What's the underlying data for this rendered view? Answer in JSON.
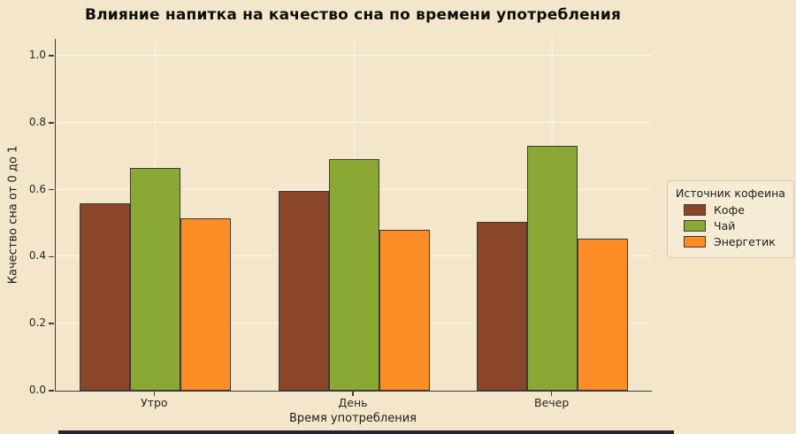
{
  "colors": {
    "background": "#f3e6cb",
    "grid": "rgba(255,255,255,0.65)",
    "axis": "#3c3c3c",
    "bar_edge": "#3a3a3a",
    "bottom_strip": "#23233a"
  },
  "chart_data": {
    "type": "bar",
    "title": "Влияние напитка на качество сна по времени употребления",
    "xlabel": "Время употребления",
    "ylabel": "Качество сна от 0 до 1",
    "categories": [
      "Утро",
      "День",
      "Вечер"
    ],
    "series": [
      {
        "name": "Кофе",
        "color": "#8b4528",
        "values": [
          0.56,
          0.595,
          0.505
        ]
      },
      {
        "name": "Чай",
        "color": "#8aa833",
        "values": [
          0.665,
          0.69,
          0.73
        ]
      },
      {
        "name": "Энергетик",
        "color": "#fd8c27",
        "values": [
          0.515,
          0.48,
          0.455
        ]
      }
    ],
    "ylim": [
      0,
      1.05
    ],
    "yticks": [
      0.0,
      0.2,
      0.4,
      0.6,
      0.8,
      1.0
    ],
    "grid": true,
    "legend_title": "Источник кофеина",
    "legend_position": "right"
  }
}
